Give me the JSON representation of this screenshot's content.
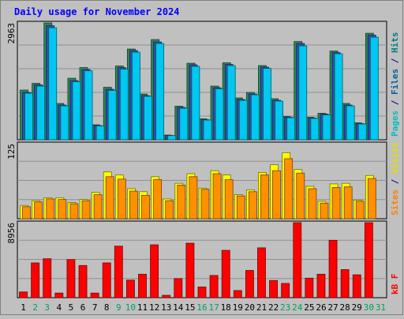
{
  "chart_data": {
    "type": "bar",
    "title": "Daily usage for November 2024",
    "categories": [
      "1",
      "2",
      "3",
      "4",
      "5",
      "6",
      "7",
      "8",
      "9",
      "10",
      "11",
      "12",
      "13",
      "14",
      "15",
      "16",
      "17",
      "18",
      "19",
      "20",
      "21",
      "22",
      "23",
      "24",
      "25",
      "26",
      "27",
      "28",
      "29",
      "30",
      "31"
    ],
    "weekend_days": [
      "2",
      "3",
      "9",
      "10",
      "16",
      "17",
      "23",
      "24",
      "30",
      "31"
    ],
    "panels": [
      {
        "name": "traffic-top",
        "ymax": 2963,
        "ymax_label": "2963",
        "axis_labels": [
          {
            "text": "Pages",
            "color": "#00c0c0"
          },
          {
            "text": " / ",
            "color": "#000080"
          },
          {
            "text": "Files",
            "color": "#0060a0"
          },
          {
            "text": " / ",
            "color": "#000080"
          },
          {
            "text": "Hits",
            "color": "#008080"
          }
        ],
        "series": [
          {
            "name": "Hits",
            "color": "#2a8a5a",
            "values": [
              1260,
              1430,
              2963,
              920,
              1560,
              1830,
              380,
              1330,
              1870,
              2300,
              1160,
              2540,
              120,
              850,
              1940,
              530,
              1360,
              1950,
              1060,
              1200,
              1880,
              1040,
              590,
              2490,
              570,
              670,
              2250,
              920,
              430,
              2700,
              0
            ]
          },
          {
            "name": "Files",
            "color": "#3050b0",
            "values": [
              1200,
              1390,
              2890,
              880,
              1500,
              1780,
              360,
              1280,
              1830,
              2260,
              1120,
              2480,
              110,
              820,
              1900,
              510,
              1320,
              1910,
              1020,
              1160,
              1840,
              1000,
              570,
              2440,
              550,
              650,
              2210,
              880,
              410,
              2650,
              0
            ]
          },
          {
            "name": "Pages",
            "color": "#00c8f0",
            "values": [
              1180,
              1360,
              2840,
              860,
              1470,
              1750,
              350,
              1250,
              1790,
              2220,
              1100,
              2440,
              105,
              800,
              1860,
              500,
              1290,
              1880,
              1000,
              1140,
              1810,
              980,
              560,
              2380,
              540,
              630,
              2180,
              860,
              400,
              2600,
              0
            ]
          }
        ]
      },
      {
        "name": "visitors",
        "ymax": 125,
        "ymax_label": "125",
        "axis_labels": [
          {
            "text": "Sites",
            "color": "#ff8000"
          },
          {
            "text": " / ",
            "color": "#000080"
          },
          {
            "text": "Visits",
            "color": "#e0e000"
          }
        ],
        "series": [
          {
            "name": "Visits",
            "color": "#ffff00",
            "values": [
              22,
              30,
              35,
              35,
              27,
              32,
              44,
              78,
              73,
              50,
              45,
              70,
              33,
              59,
              75,
              51,
              80,
              73,
              40,
              48,
              77,
              90,
              110,
              82,
              54,
              29,
              58,
              59,
              31,
              72,
              0
            ]
          },
          {
            "name": "Sites",
            "color": "#ff9000",
            "values": [
              20,
              28,
              33,
              32,
              25,
              30,
              40,
              70,
              66,
              46,
              39,
              65,
              30,
              56,
              70,
              49,
              75,
              65,
              38,
              45,
              73,
              80,
              100,
              76,
              50,
              26,
              52,
              53,
              29,
              67,
              0
            ]
          }
        ]
      },
      {
        "name": "kbytes",
        "ymax": 8956,
        "ymax_label": "8956",
        "axis_labels": [
          {
            "text": "kB F",
            "color": "#ff0000"
          }
        ],
        "series": [
          {
            "name": "kB F",
            "color": "#ff0000",
            "values": [
              680,
              4150,
              4650,
              550,
              4550,
              3840,
              550,
              4150,
              6150,
              2100,
              2800,
              6310,
              280,
              2280,
              6500,
              1280,
              2650,
              5650,
              850,
              3250,
              5950,
              2050,
              1700,
              8956,
              2330,
              2800,
              6850,
              3350,
              2730,
              8956,
              0
            ]
          }
        ]
      }
    ]
  }
}
